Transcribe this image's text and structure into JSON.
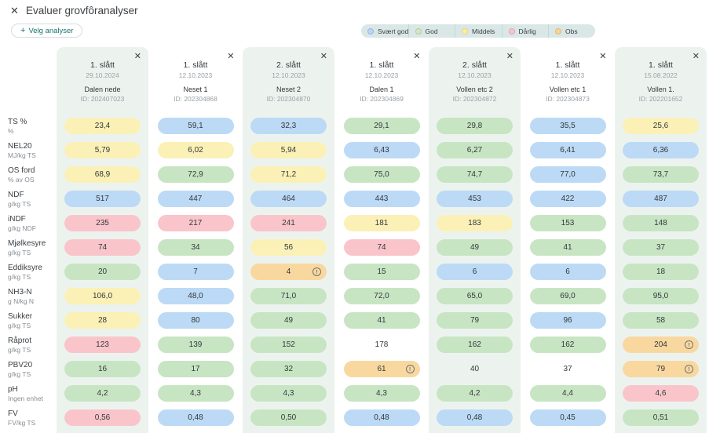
{
  "header": {
    "title": "Evaluer grovfôranalyser",
    "close_icon": "✕",
    "select_button_label": "Velg analyser"
  },
  "legend": [
    {
      "label": "Svært god",
      "color": "#bdd4f6",
      "border": "#9cb6e8"
    },
    {
      "label": "God",
      "color": "#d7e5c6",
      "border": "#b7cd9c"
    },
    {
      "label": "Middels",
      "color": "#fdeca4",
      "border": "#ead87d"
    },
    {
      "label": "Dårlig",
      "color": "#f7c6cd",
      "border": "#eba2ad"
    },
    {
      "label": "Obs",
      "color": "#f8d3a0",
      "border": "#ecb671"
    }
  ],
  "colors": {
    "blue": "#bcdaf5",
    "green": "#c8e5c3",
    "yellow": "#fbf1b6",
    "red": "#f9c5cb",
    "orange": "#f9d8a0",
    "none": "transparent"
  },
  "rows": [
    {
      "name": "TS %",
      "unit": "%"
    },
    {
      "name": "NEL20",
      "unit": "MJ/kg TS"
    },
    {
      "name": "OS ford",
      "unit": "% av OS"
    },
    {
      "name": "NDF",
      "unit": "g/kg TS"
    },
    {
      "name": "iNDF",
      "unit": "g/kg NDF"
    },
    {
      "name": "Mjølkesyre",
      "unit": "g/kg TS"
    },
    {
      "name": "Eddiksyre",
      "unit": "g/kg TS"
    },
    {
      "name": "NH3-N",
      "unit": "g N/kg N"
    },
    {
      "name": "Sukker",
      "unit": "g/kg TS"
    },
    {
      "name": "Råprot",
      "unit": "g/kg TS"
    },
    {
      "name": "PBV20",
      "unit": "g/kg TS"
    },
    {
      "name": "pH",
      "unit": "Ingen enhet"
    },
    {
      "name": "FV",
      "unit": "FV/kg TS"
    }
  ],
  "columns": [
    {
      "harvest": "1. slått",
      "date": "29.10.2024",
      "name": "Dalen nede",
      "id": "ID: 202407023",
      "shaded": true,
      "values": [
        {
          "v": "23,4",
          "c": "yellow"
        },
        {
          "v": "5,79",
          "c": "yellow"
        },
        {
          "v": "68,9",
          "c": "yellow"
        },
        {
          "v": "517",
          "c": "blue"
        },
        {
          "v": "235",
          "c": "red"
        },
        {
          "v": "74",
          "c": "red"
        },
        {
          "v": "20",
          "c": "green"
        },
        {
          "v": "106,0",
          "c": "yellow"
        },
        {
          "v": "28",
          "c": "yellow"
        },
        {
          "v": "123",
          "c": "red"
        },
        {
          "v": "16",
          "c": "green"
        },
        {
          "v": "4,2",
          "c": "green"
        },
        {
          "v": "0,56",
          "c": "red"
        }
      ]
    },
    {
      "harvest": "1. slått",
      "date": "12.10.2023",
      "name": "Neset 1",
      "id": "ID: 202304868",
      "shaded": false,
      "values": [
        {
          "v": "59,1",
          "c": "blue"
        },
        {
          "v": "6,02",
          "c": "yellow"
        },
        {
          "v": "72,9",
          "c": "green"
        },
        {
          "v": "447",
          "c": "blue"
        },
        {
          "v": "217",
          "c": "red"
        },
        {
          "v": "34",
          "c": "green"
        },
        {
          "v": "7",
          "c": "blue"
        },
        {
          "v": "48,0",
          "c": "blue"
        },
        {
          "v": "80",
          "c": "blue"
        },
        {
          "v": "139",
          "c": "green"
        },
        {
          "v": "17",
          "c": "green"
        },
        {
          "v": "4,3",
          "c": "green"
        },
        {
          "v": "0,48",
          "c": "blue"
        }
      ]
    },
    {
      "harvest": "2. slått",
      "date": "12.10.2023",
      "name": "Neset 2",
      "id": "ID: 202304870",
      "shaded": true,
      "values": [
        {
          "v": "32,3",
          "c": "blue"
        },
        {
          "v": "5,94",
          "c": "yellow"
        },
        {
          "v": "71,2",
          "c": "yellow"
        },
        {
          "v": "464",
          "c": "blue"
        },
        {
          "v": "241",
          "c": "red"
        },
        {
          "v": "56",
          "c": "yellow"
        },
        {
          "v": "4",
          "c": "orange",
          "warn": true
        },
        {
          "v": "71,0",
          "c": "green"
        },
        {
          "v": "49",
          "c": "green"
        },
        {
          "v": "152",
          "c": "green"
        },
        {
          "v": "32",
          "c": "green"
        },
        {
          "v": "4,3",
          "c": "green"
        },
        {
          "v": "0,50",
          "c": "green"
        }
      ]
    },
    {
      "harvest": "1. slått",
      "date": "12.10.2023",
      "name": "Dalen 1",
      "id": "ID: 202304869",
      "shaded": false,
      "values": [
        {
          "v": "29,1",
          "c": "green"
        },
        {
          "v": "6,43",
          "c": "blue"
        },
        {
          "v": "75,0",
          "c": "green"
        },
        {
          "v": "443",
          "c": "blue"
        },
        {
          "v": "181",
          "c": "yellow"
        },
        {
          "v": "74",
          "c": "red"
        },
        {
          "v": "15",
          "c": "green"
        },
        {
          "v": "72,0",
          "c": "green"
        },
        {
          "v": "41",
          "c": "green"
        },
        {
          "v": "178",
          "c": "none"
        },
        {
          "v": "61",
          "c": "orange",
          "warn": true
        },
        {
          "v": "4,3",
          "c": "green"
        },
        {
          "v": "0,48",
          "c": "blue"
        }
      ]
    },
    {
      "harvest": "2. slått",
      "date": "12.10.2023",
      "name": "Vollen etc 2",
      "id": "ID: 202304872",
      "shaded": true,
      "values": [
        {
          "v": "29,8",
          "c": "green"
        },
        {
          "v": "6,27",
          "c": "green"
        },
        {
          "v": "74,7",
          "c": "green"
        },
        {
          "v": "453",
          "c": "blue"
        },
        {
          "v": "183",
          "c": "yellow"
        },
        {
          "v": "49",
          "c": "green"
        },
        {
          "v": "6",
          "c": "blue"
        },
        {
          "v": "65,0",
          "c": "green"
        },
        {
          "v": "79",
          "c": "green"
        },
        {
          "v": "162",
          "c": "green"
        },
        {
          "v": "40",
          "c": "none"
        },
        {
          "v": "4,2",
          "c": "green"
        },
        {
          "v": "0,48",
          "c": "blue"
        }
      ]
    },
    {
      "harvest": "1. slått",
      "date": "12.10.2023",
      "name": "Vollen etc 1",
      "id": "ID: 202304873",
      "shaded": false,
      "values": [
        {
          "v": "35,5",
          "c": "blue"
        },
        {
          "v": "6,41",
          "c": "blue"
        },
        {
          "v": "77,0",
          "c": "blue"
        },
        {
          "v": "422",
          "c": "blue"
        },
        {
          "v": "153",
          "c": "green"
        },
        {
          "v": "41",
          "c": "green"
        },
        {
          "v": "6",
          "c": "blue"
        },
        {
          "v": "69,0",
          "c": "green"
        },
        {
          "v": "96",
          "c": "blue"
        },
        {
          "v": "162",
          "c": "green"
        },
        {
          "v": "37",
          "c": "none"
        },
        {
          "v": "4,4",
          "c": "green"
        },
        {
          "v": "0,45",
          "c": "blue"
        }
      ]
    },
    {
      "harvest": "1. slått",
      "date": "15.08.2022",
      "name": "Vollen 1.",
      "id": "ID: 202201652",
      "shaded": true,
      "values": [
        {
          "v": "25,6",
          "c": "yellow"
        },
        {
          "v": "6,36",
          "c": "blue"
        },
        {
          "v": "73,7",
          "c": "green"
        },
        {
          "v": "487",
          "c": "blue"
        },
        {
          "v": "148",
          "c": "green"
        },
        {
          "v": "37",
          "c": "green"
        },
        {
          "v": "18",
          "c": "green"
        },
        {
          "v": "95,0",
          "c": "green"
        },
        {
          "v": "58",
          "c": "green"
        },
        {
          "v": "204",
          "c": "orange",
          "warn": true
        },
        {
          "v": "79",
          "c": "orange",
          "warn": true
        },
        {
          "v": "4,6",
          "c": "red"
        },
        {
          "v": "0,51",
          "c": "green"
        }
      ]
    }
  ],
  "warning_icon_glyph": "!"
}
